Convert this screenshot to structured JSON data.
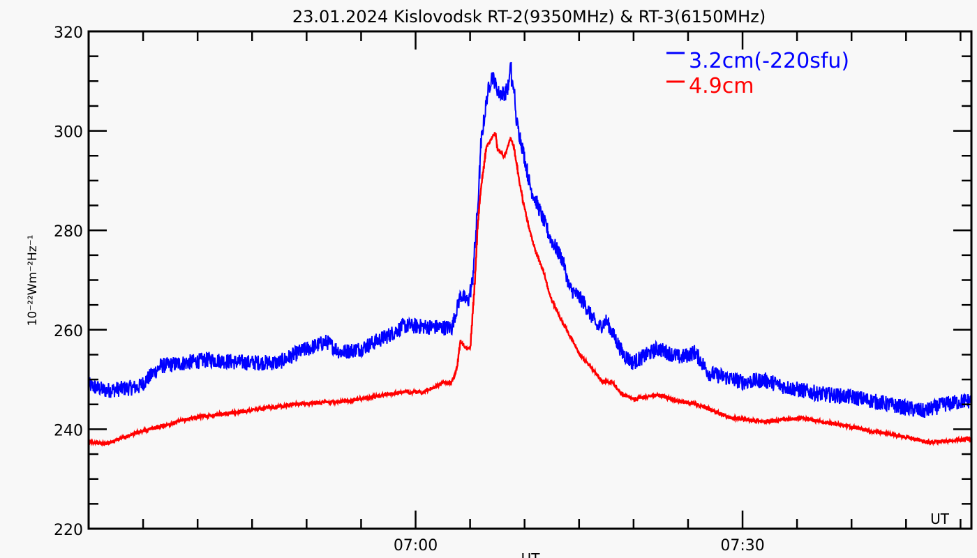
{
  "chart_data": {
    "type": "line",
    "title": "23.01.2024 Kislovodsk RT-2(9350MHz) & RT-3(6150MHz)",
    "xlabel": "UT",
    "xlabel_inner": "UT",
    "ylabel": "10⁻²²Wm⁻²Hz⁻¹",
    "x_unit": "minutes after 06:30 UT",
    "xlim": [
      0,
      81
    ],
    "ylim": [
      220,
      320
    ],
    "x_major_ticks": [
      {
        "x": 30,
        "label": "07:00"
      },
      {
        "x": 60,
        "label": "07:30"
      }
    ],
    "x_minor_step": 5,
    "y_major_ticks": [
      220,
      240,
      260,
      280,
      300,
      320
    ],
    "y_minor_step": 5,
    "grid": false,
    "legend_position": "top-right",
    "series": [
      {
        "name": "3.2cm(-220sfu)",
        "color": "#0000ff",
        "noisy": true,
        "x": [
          0,
          1.5,
          4.6,
          6.6,
          11,
          14.2,
          17.4,
          19.3,
          21.8,
          23.1,
          25,
          27.6,
          28.9,
          33.3,
          34.1,
          34.8,
          35.2,
          35.7,
          36,
          36.6,
          37,
          37.6,
          38.2,
          38.6,
          38.7,
          38.8,
          39,
          39.2,
          39.9,
          40.5,
          41.4,
          42.4,
          43.5,
          44.1,
          45.4,
          46.7,
          47.5,
          49,
          49.9,
          52.2,
          54.3,
          55.6,
          56.9,
          60,
          62,
          63.9,
          67.1,
          70.3,
          73.4,
          76.6,
          78.5,
          80.4
        ],
        "y": [
          248.9,
          247.8,
          248.5,
          252.7,
          254,
          253.4,
          253.4,
          255.5,
          257.6,
          255.5,
          256.2,
          259,
          260.8,
          260.4,
          267,
          265.6,
          269.8,
          285,
          297.8,
          307.6,
          311.3,
          307.6,
          307.6,
          309.5,
          315.5,
          309.5,
          309,
          302.5,
          295.5,
          288.8,
          283.8,
          278.2,
          274,
          268.4,
          265.6,
          260.4,
          261.8,
          255.2,
          253.4,
          256.2,
          254.4,
          255.5,
          251.3,
          249.5,
          249.9,
          248.5,
          247.1,
          246.4,
          245,
          243.6,
          245,
          245.7
        ]
      },
      {
        "name": "4.9cm",
        "color": "#ff0000",
        "noisy": false,
        "x": [
          0,
          1.5,
          4.6,
          9.7,
          14.2,
          18.7,
          23.8,
          27.6,
          28.9,
          30.6,
          32.7,
          33.3,
          33.8,
          34.1,
          34.6,
          35,
          35.4,
          35.7,
          36,
          36.5,
          36.9,
          37.3,
          37.5,
          38.1,
          38.7,
          39,
          39.5,
          39.9,
          40.5,
          41,
          41.6,
          42.4,
          43.3,
          44.1,
          45,
          45.9,
          47.1,
          48,
          48.8,
          50.1,
          52.2,
          53.9,
          55.6,
          58.8,
          62,
          65.2,
          68.3,
          71.5,
          74.7,
          77.3,
          80.4
        ],
        "y": [
          237.5,
          237.1,
          239.4,
          242.4,
          243.6,
          245,
          245.7,
          247.1,
          247.5,
          247.4,
          249.5,
          249.3,
          252.4,
          258,
          256.2,
          256.2,
          268.8,
          281.4,
          288.8,
          296.9,
          298.3,
          299.7,
          296.4,
          294.8,
          298.5,
          296.9,
          289.8,
          285.2,
          279.6,
          275.8,
          272.6,
          266.4,
          262.2,
          259,
          255.2,
          253,
          249.6,
          249.6,
          247.3,
          246,
          247,
          245.7,
          245.2,
          242.4,
          241.5,
          242.2,
          241.2,
          239.8,
          238.5,
          237.3,
          238
        ]
      }
    ]
  }
}
